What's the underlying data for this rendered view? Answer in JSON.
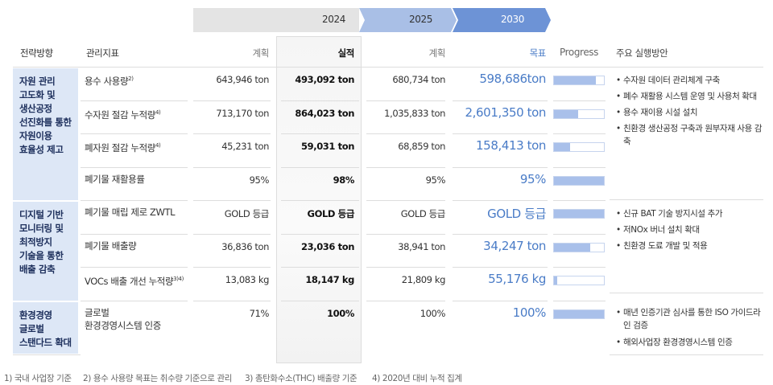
{
  "years": [
    {
      "label": "2024"
    },
    {
      "label": "2025"
    },
    {
      "label": "2030"
    }
  ],
  "header": {
    "strategy": "전략방향",
    "indicator": "관리지표",
    "plan_2024": "계획",
    "actual_2024": "실적",
    "plan_2025": "계획",
    "target_2030": "목표",
    "progress": "Progress",
    "actions": "주요 실행방안"
  },
  "groups": [
    {
      "strategy": [
        "자원 관리",
        "고도화 및",
        "생산공정",
        "선진화를 통한",
        "자원이용",
        "효율성 제고"
      ],
      "rows": [
        {
          "indicator": [
            "용수 사용량"
          ],
          "note": "2)",
          "plan_2024": "643,946 ton",
          "actual_2024": "493,092 ton",
          "plan_2025": "680,734 ton",
          "target_2030": "598,686ton",
          "progress": 84
        },
        {
          "indicator": [
            "수자원 절감 누적량"
          ],
          "note": "4)",
          "plan_2024": "713,170 ton",
          "actual_2024": "864,023 ton",
          "plan_2025": "1,035,833 ton",
          "target_2030": "2,601,350 ton",
          "progress": 48
        },
        {
          "indicator": [
            "폐자원 절감 누적량"
          ],
          "note": "4)",
          "plan_2024": "45,231 ton",
          "actual_2024": "59,031 ton",
          "plan_2025": "68,859 ton",
          "target_2030": "158,413 ton",
          "progress": 33
        },
        {
          "indicator": [
            "폐기물 재활용률"
          ],
          "plan_2024": "95%",
          "actual_2024": "98%",
          "plan_2025": "95%",
          "target_2030": "95%",
          "progress": 100
        }
      ],
      "actions": [
        "수자원 데이터 관리체계 구축",
        "폐수 재활용 시스템 운영 및 사용처 확대",
        "용수 재이용 시설 설치",
        "친환경 생산공정 구축과 원부자재 사용 감축"
      ]
    },
    {
      "strategy": [
        "디지털 기반",
        "모니터링 및",
        "최적방지",
        "기술을 통한",
        "배출 감축"
      ],
      "rows": [
        {
          "indicator": [
            "폐기물 매립 제로 ZWTL"
          ],
          "plan_2024": "GOLD 등급",
          "actual_2024": "GOLD 등급",
          "plan_2025": "GOLD 등급",
          "target_2030": "GOLD 등급",
          "progress": 100
        },
        {
          "indicator": [
            "폐기물 배출량"
          ],
          "plan_2024": "36,836 ton",
          "actual_2024": "23,036 ton",
          "plan_2025": "38,941 ton",
          "target_2030": "34,247 ton",
          "progress": 72
        },
        {
          "indicator": [
            "VOCs 배출 개선 누적량"
          ],
          "note": "3)4)",
          "plan_2024": "13,083 kg",
          "actual_2024": "18,147 kg",
          "plan_2025": "21,809 kg",
          "target_2030": "55,176 kg",
          "progress": 6
        }
      ],
      "actions": [
        "신규 BAT 기술 방지시설 추가",
        "저NOx 버너 설치 확대",
        "친환경 도료 개발 및 적용"
      ]
    },
    {
      "strategy": [
        "환경경영",
        "글로벌",
        "스탠다드 확대"
      ],
      "rows": [
        {
          "indicator": [
            "글로벌",
            "환경경영시스템 인증"
          ],
          "plan_2024": "71%",
          "actual_2024": "100%",
          "plan_2025": "100%",
          "target_2030": "100%",
          "progress": 100
        }
      ],
      "actions": [
        "매년 인증기관 심사를 통한 ISO 가이드라인 검증",
        "해외사업장 환경경영시스템 인증"
      ]
    }
  ],
  "footnotes": [
    "1) 국내 사업장 기준",
    "2) 용수 사용량 목표는 취수량 기준으로 관리",
    "3) 총탄화수소(THC) 배출량 기준",
    "4) 2020년 대비 누적 집계"
  ]
}
